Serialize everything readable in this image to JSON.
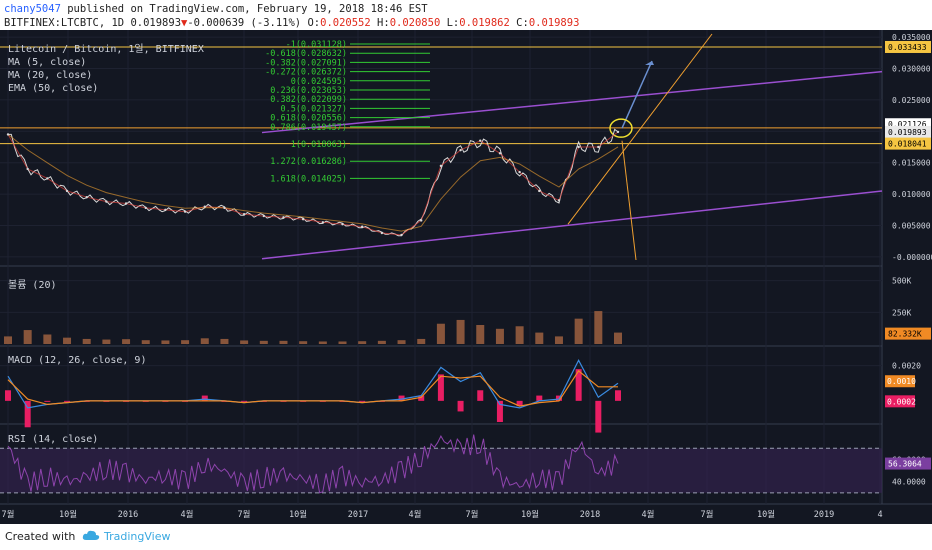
{
  "header": {
    "author": "chany5047",
    "published_text": "published on TradingView.com, February 19, 2018 18:46 EST",
    "symbol": "BITFINEX:LTCBTC, 1D",
    "last": "0.019893",
    "change": "-0.000639 (-3.11%)",
    "o_label": "O:",
    "o_value": "0.020552",
    "h_label": "H:",
    "h_value": "0.020850",
    "l_label": "L:",
    "l_value": "0.019862",
    "c_label": "C:",
    "c_value": "0.019893"
  },
  "footer": {
    "created_with": "Created with",
    "brand": "TradingView"
  },
  "colors": {
    "background": "#131722",
    "grid": "#1e2231",
    "axis_text": "#cfd3dc",
    "price": "#d8d8d8",
    "ma5": "#e0413a",
    "ma20": "#3a8be0",
    "ema50": "#f0a030",
    "fib": "#33cc33",
    "purple": "#9a4fd0",
    "orange": "#f0a030",
    "volume": "#9e6040",
    "macd": "#3a8be0",
    "signal": "#f08a24",
    "hist": "#e91e63",
    "rsi": "#8e44ad",
    "rsi_band": "#3a2558",
    "label_yellow": "#f5c542",
    "label_orange": "#f08a24"
  },
  "chart_data": [
    {
      "type": "line",
      "title": "Litecoin / Bitcoin, 1일, BITFINEX",
      "legend": [
        "MA (5, close)",
        "MA (20, close)",
        "EMA (50, close)"
      ],
      "x": [
        "2015-07",
        "2015-08",
        "2015-09",
        "2015-10",
        "2015-11",
        "2015-12",
        "2016-01",
        "2016-02",
        "2016-03",
        "2016-04",
        "2016-05",
        "2016-06",
        "2016-07",
        "2016-08",
        "2016-09",
        "2016-10",
        "2016-11",
        "2016-12",
        "2017-01",
        "2017-02",
        "2017-03",
        "2017-04",
        "2017-05",
        "2017-06",
        "2017-07",
        "2017-08",
        "2017-09",
        "2017-10",
        "2017-11",
        "2017-12",
        "2018-01",
        "2018-02"
      ],
      "series": [
        {
          "name": "LTCBTC",
          "values": [
            0.0195,
            0.014,
            0.0125,
            0.0105,
            0.0095,
            0.0088,
            0.0085,
            0.0078,
            0.0075,
            0.0072,
            0.008,
            0.0078,
            0.0068,
            0.0065,
            0.0063,
            0.006,
            0.0055,
            0.0052,
            0.0048,
            0.0038,
            0.0035,
            0.0058,
            0.0145,
            0.017,
            0.0185,
            0.0165,
            0.0135,
            0.0105,
            0.009,
            0.0175,
            0.0175,
            0.0199
          ]
        }
      ],
      "x_tick_labels": [
        "7월",
        "10월",
        "2016",
        "4월",
        "7월",
        "10월",
        "2017",
        "4월",
        "7월",
        "10월",
        "2018",
        "4월",
        "7월",
        "10월",
        "2019",
        "4"
      ],
      "y_tick_labels": [
        "0.035000",
        "0.030000",
        "0.025000",
        "0.020000",
        "0.015000",
        "0.010000",
        "0.005000",
        "-0.000000"
      ],
      "ylim": [
        -0.0005,
        0.0355
      ],
      "price_labels": [
        "0.033433",
        "0.021126",
        "0.019893",
        "0.018041"
      ],
      "fibonacci": [
        {
          "label": "-1(0.031128)"
        },
        {
          "label": "-0.618(0.028632)"
        },
        {
          "label": "-0.382(0.027091)"
        },
        {
          "label": "-0.272(0.026372)"
        },
        {
          "label": "0(0.024595)"
        },
        {
          "label": "0.236(0.023053)"
        },
        {
          "label": "0.382(0.022099)"
        },
        {
          "label": "0.5(0.021327)"
        },
        {
          "label": "0.618(0.020556)"
        },
        {
          "label": "0.786(0.019457)"
        },
        {
          "label": "1(0.018063)"
        },
        {
          "label": "1.272(0.016286)"
        },
        {
          "label": "1.618(0.014025)"
        }
      ],
      "horizontal_levels": [
        0.033433,
        0.020556,
        0.018041
      ]
    },
    {
      "type": "bar",
      "title": "볼륨 (20)",
      "y_tick_labels": [
        "500K",
        "250K"
      ],
      "last_label": "82.332K",
      "values_k": [
        60,
        110,
        75,
        50,
        40,
        35,
        38,
        30,
        28,
        30,
        45,
        40,
        28,
        25,
        25,
        22,
        20,
        20,
        22,
        25,
        30,
        40,
        160,
        190,
        150,
        120,
        140,
        90,
        60,
        200,
        260,
        90
      ]
    },
    {
      "type": "line",
      "title": "MACD (12, 26, close, 9)",
      "y_tick_labels": [
        "0.0020"
      ],
      "value_labels": [
        "0.0010",
        "0.0002"
      ],
      "series": [
        {
          "name": "MACD",
          "values": [
            0.0014,
            -0.0004,
            -0.0002,
            -0.0001,
            0,
            0,
            0,
            0,
            0,
            0,
            0.0001,
            0,
            -0.0001,
            0,
            0,
            0,
            0,
            0,
            -0.0001,
            0,
            0.0001,
            0.0003,
            0.0019,
            0.0011,
            0.0016,
            -0.0002,
            -0.0004,
            0,
            0.0001,
            0.0023,
            0.0002,
            0.001
          ]
        },
        {
          "name": "Signal",
          "values": [
            0.0012,
            0.0001,
            -0.0002,
            -0.0001,
            0,
            0,
            0,
            0,
            0,
            0,
            0,
            0,
            -0.0001,
            0,
            0,
            0,
            0,
            0,
            -0.0001,
            0,
            0,
            0.0002,
            0.0014,
            0.0013,
            0.0014,
            0.0002,
            -0.0003,
            -0.0001,
            0,
            0.0017,
            0.0008,
            0.0008
          ]
        }
      ]
    },
    {
      "type": "line",
      "title": "RSI (14, close)",
      "y_tick_labels": [
        "60.0000",
        "40.0000"
      ],
      "last_label": "56.3064",
      "series": [
        {
          "name": "RSI",
          "values": [
            72,
            38,
            45,
            40,
            44,
            52,
            48,
            42,
            46,
            40,
            56,
            50,
            38,
            44,
            46,
            42,
            38,
            45,
            40,
            42,
            50,
            62,
            78,
            70,
            75,
            42,
            36,
            44,
            40,
            76,
            48,
            56.3
          ]
        }
      ]
    }
  ]
}
